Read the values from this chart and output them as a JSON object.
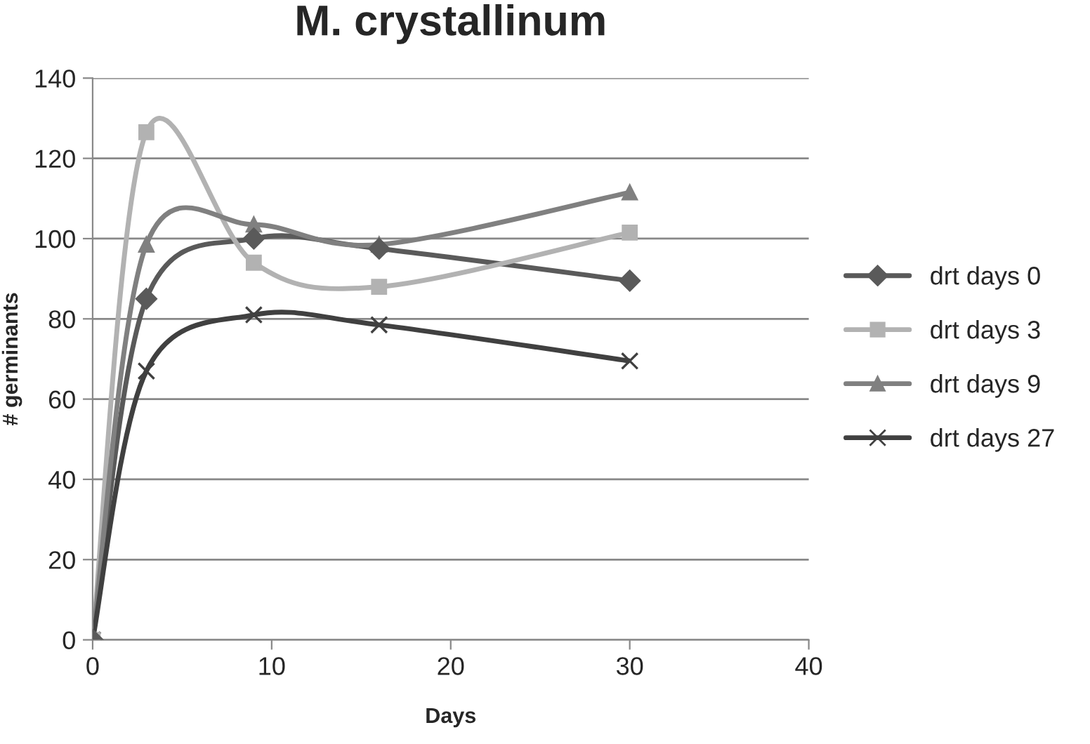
{
  "chart_data": {
    "type": "line",
    "title": "M. crystallinum",
    "xlabel": "Days",
    "ylabel": "# germinants",
    "x": [
      0,
      3,
      9,
      16,
      30
    ],
    "series": [
      {
        "name": "drt days 0",
        "color": "#5a5a5a",
        "marker": "diamond",
        "values": [
          0,
          85,
          100,
          97.5,
          89.5
        ]
      },
      {
        "name": "drt days 3",
        "color": "#b2b2b2",
        "marker": "square",
        "values": [
          0,
          126.5,
          94,
          88,
          101.5
        ]
      },
      {
        "name": "drt days 9",
        "color": "#808080",
        "marker": "triangle",
        "values": [
          0,
          98.5,
          103.5,
          98.5,
          111.5
        ]
      },
      {
        "name": "drt days 27",
        "color": "#404040",
        "marker": "cross",
        "values": [
          0,
          67,
          81,
          78.5,
          69.5
        ]
      }
    ],
    "xlim": [
      0,
      40
    ],
    "xticks": [
      0,
      10,
      20,
      30,
      40
    ],
    "ylim": [
      0,
      140
    ],
    "yticks": [
      0,
      20,
      40,
      60,
      80,
      100,
      120,
      140
    ],
    "grid": "y",
    "legend": "right",
    "line_style": "solid"
  }
}
